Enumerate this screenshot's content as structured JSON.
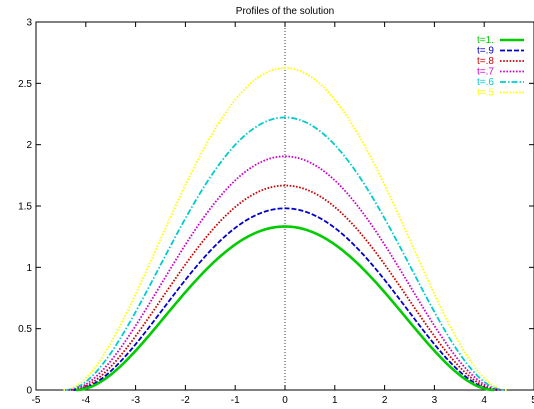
{
  "chart_data": {
    "type": "line",
    "title": "Profiles of the solution",
    "xlabel": "",
    "ylabel": "",
    "xlim": [
      -5,
      5
    ],
    "ylim": [
      0,
      3
    ],
    "x_ticks": [
      "-5",
      "-4",
      "-3",
      "-2",
      "-1",
      "0",
      "1",
      "2",
      "3",
      "4",
      "5"
    ],
    "y_ticks": [
      "0",
      "0.5",
      "1",
      "1.5",
      "2",
      "2.5",
      "3"
    ],
    "grid": false,
    "legend_position": "top-right",
    "zero_axis": "dotted vertical line at x = 0",
    "x": [
      -4.4,
      -4.0,
      -3.5,
      -3.0,
      -2.5,
      -2.0,
      -1.5,
      -1.0,
      -0.5,
      0,
      0.5,
      1.0,
      1.5,
      2.0,
      2.5,
      3.0,
      3.5,
      4.0,
      4.4
    ],
    "series": [
      {
        "name": "t=1.",
        "color": "#00cc00",
        "style": "solid",
        "support": [
          -4.2,
          4.2
        ],
        "values": [
          0,
          0.0,
          0.07,
          0.23,
          0.46,
          0.72,
          0.97,
          1.17,
          1.29,
          1.333,
          1.29,
          1.17,
          0.97,
          0.72,
          0.46,
          0.23,
          0.07,
          0.0,
          0
        ]
      },
      {
        "name": "t=.9",
        "color": "#0000cc",
        "style": "dashed",
        "support": [
          -4.25,
          4.25
        ],
        "values": [
          0,
          0.01,
          0.09,
          0.27,
          0.53,
          0.82,
          1.09,
          1.31,
          1.44,
          1.481,
          1.44,
          1.31,
          1.09,
          0.82,
          0.53,
          0.27,
          0.09,
          0.01,
          0
        ]
      },
      {
        "name": "t=.8",
        "color": "#cc0000",
        "style": "dotted",
        "support": [
          -4.3,
          4.3
        ],
        "values": [
          0,
          0.02,
          0.11,
          0.31,
          0.6,
          0.93,
          1.23,
          1.47,
          1.62,
          1.667,
          1.62,
          1.47,
          1.23,
          0.93,
          0.6,
          0.31,
          0.11,
          0.02,
          0
        ]
      },
      {
        "name": "t=.7",
        "color": "#cc00cc",
        "style": "dotted",
        "support": [
          -4.35,
          4.35
        ],
        "values": [
          0,
          0.03,
          0.13,
          0.36,
          0.69,
          1.06,
          1.41,
          1.68,
          1.85,
          1.905,
          1.85,
          1.68,
          1.41,
          1.06,
          0.69,
          0.36,
          0.13,
          0.03,
          0
        ]
      },
      {
        "name": "t=.6",
        "color": "#00cccc",
        "style": "dashdot",
        "support": [
          -4.4,
          4.4
        ],
        "values": [
          0,
          0.04,
          0.16,
          0.42,
          0.8,
          1.23,
          1.64,
          1.96,
          2.16,
          2.222,
          2.16,
          1.96,
          1.64,
          1.23,
          0.8,
          0.42,
          0.16,
          0.04,
          0
        ]
      },
      {
        "name": "t=.5",
        "color": "#ffff00",
        "style": "dotted",
        "support": [
          -4.45,
          4.45
        ],
        "values": [
          0,
          0.05,
          0.2,
          0.49,
          0.95,
          1.46,
          1.94,
          2.32,
          2.55,
          2.625,
          2.55,
          2.32,
          1.94,
          1.46,
          0.95,
          0.49,
          0.2,
          0.05,
          0
        ]
      }
    ]
  }
}
